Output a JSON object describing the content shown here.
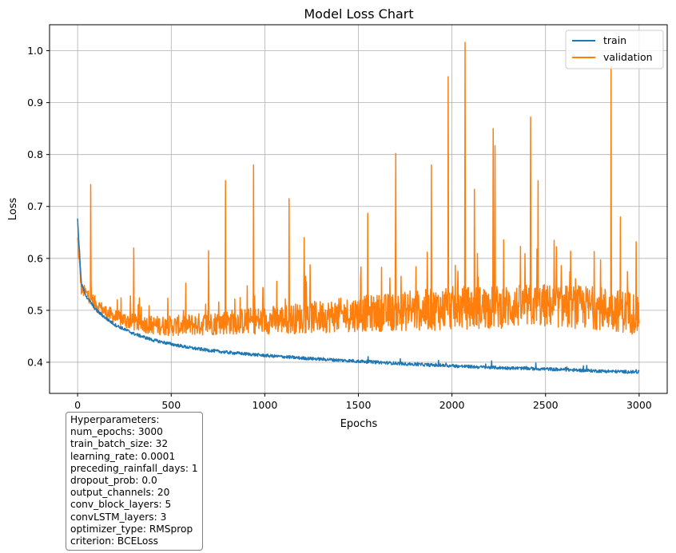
{
  "chart_data": {
    "type": "line",
    "title": "Model Loss Chart",
    "xlabel": "Epochs",
    "ylabel": "Loss",
    "xlim": [
      -150,
      3150
    ],
    "ylim": [
      0.34,
      1.05
    ],
    "xticks": [
      0,
      500,
      1000,
      1500,
      2000,
      2500,
      3000
    ],
    "yticks": [
      0.4,
      0.5,
      0.6,
      0.7,
      0.8,
      0.9,
      1.0
    ],
    "grid": true,
    "legend_position": "top-right",
    "series": [
      {
        "name": "train",
        "color": "#1f77b4",
        "x": [
          0,
          20,
          50,
          100,
          150,
          200,
          300,
          400,
          500,
          600,
          700,
          800,
          1000,
          1200,
          1500,
          1800,
          2000,
          2200,
          2500,
          2800,
          3000
        ],
        "values": [
          0.675,
          0.55,
          0.525,
          0.5,
          0.485,
          0.472,
          0.455,
          0.443,
          0.435,
          0.428,
          0.423,
          0.419,
          0.413,
          0.408,
          0.402,
          0.396,
          0.393,
          0.39,
          0.387,
          0.383,
          0.381
        ]
      },
      {
        "name": "validation",
        "color": "#ff7f0e",
        "x": [
          0,
          20,
          50,
          100,
          150,
          200,
          300,
          400,
          500,
          600,
          700,
          800,
          1000,
          1200,
          1500,
          1800,
          2000,
          2200,
          2500,
          2800,
          3000
        ],
        "values": [
          0.635,
          0.54,
          0.53,
          0.51,
          0.495,
          0.485,
          0.475,
          0.47,
          0.468,
          0.47,
          0.472,
          0.475,
          0.478,
          0.482,
          0.49,
          0.495,
          0.5,
          0.502,
          0.505,
          0.5,
          0.49
        ],
        "spikes": [
          {
            "x": 70,
            "y": 0.742
          },
          {
            "x": 300,
            "y": 0.62
          },
          {
            "x": 700,
            "y": 0.615
          },
          {
            "x": 790,
            "y": 0.75
          },
          {
            "x": 940,
            "y": 0.78
          },
          {
            "x": 1130,
            "y": 0.715
          },
          {
            "x": 1210,
            "y": 0.64
          },
          {
            "x": 1550,
            "y": 0.687
          },
          {
            "x": 1700,
            "y": 0.802
          },
          {
            "x": 1890,
            "y": 0.78
          },
          {
            "x": 1980,
            "y": 0.95
          },
          {
            "x": 2070,
            "y": 1.016
          },
          {
            "x": 2120,
            "y": 0.733
          },
          {
            "x": 2220,
            "y": 0.85
          },
          {
            "x": 2230,
            "y": 0.817
          },
          {
            "x": 2420,
            "y": 0.872
          },
          {
            "x": 2460,
            "y": 0.75
          },
          {
            "x": 2850,
            "y": 0.97
          },
          {
            "x": 2900,
            "y": 0.68
          }
        ]
      }
    ]
  },
  "hyperparameters": {
    "header": "Hyperparameters:",
    "lines": [
      "num_epochs: 3000",
      "train_batch_size: 32",
      "learning_rate: 0.0001",
      "preceding_rainfall_days: 1",
      "dropout_prob: 0.0",
      "output_channels: 20",
      "conv_block_layers: 5",
      "convLSTM_layers: 3",
      "optimizer_type: RMSprop",
      "criterion: BCELoss"
    ]
  }
}
